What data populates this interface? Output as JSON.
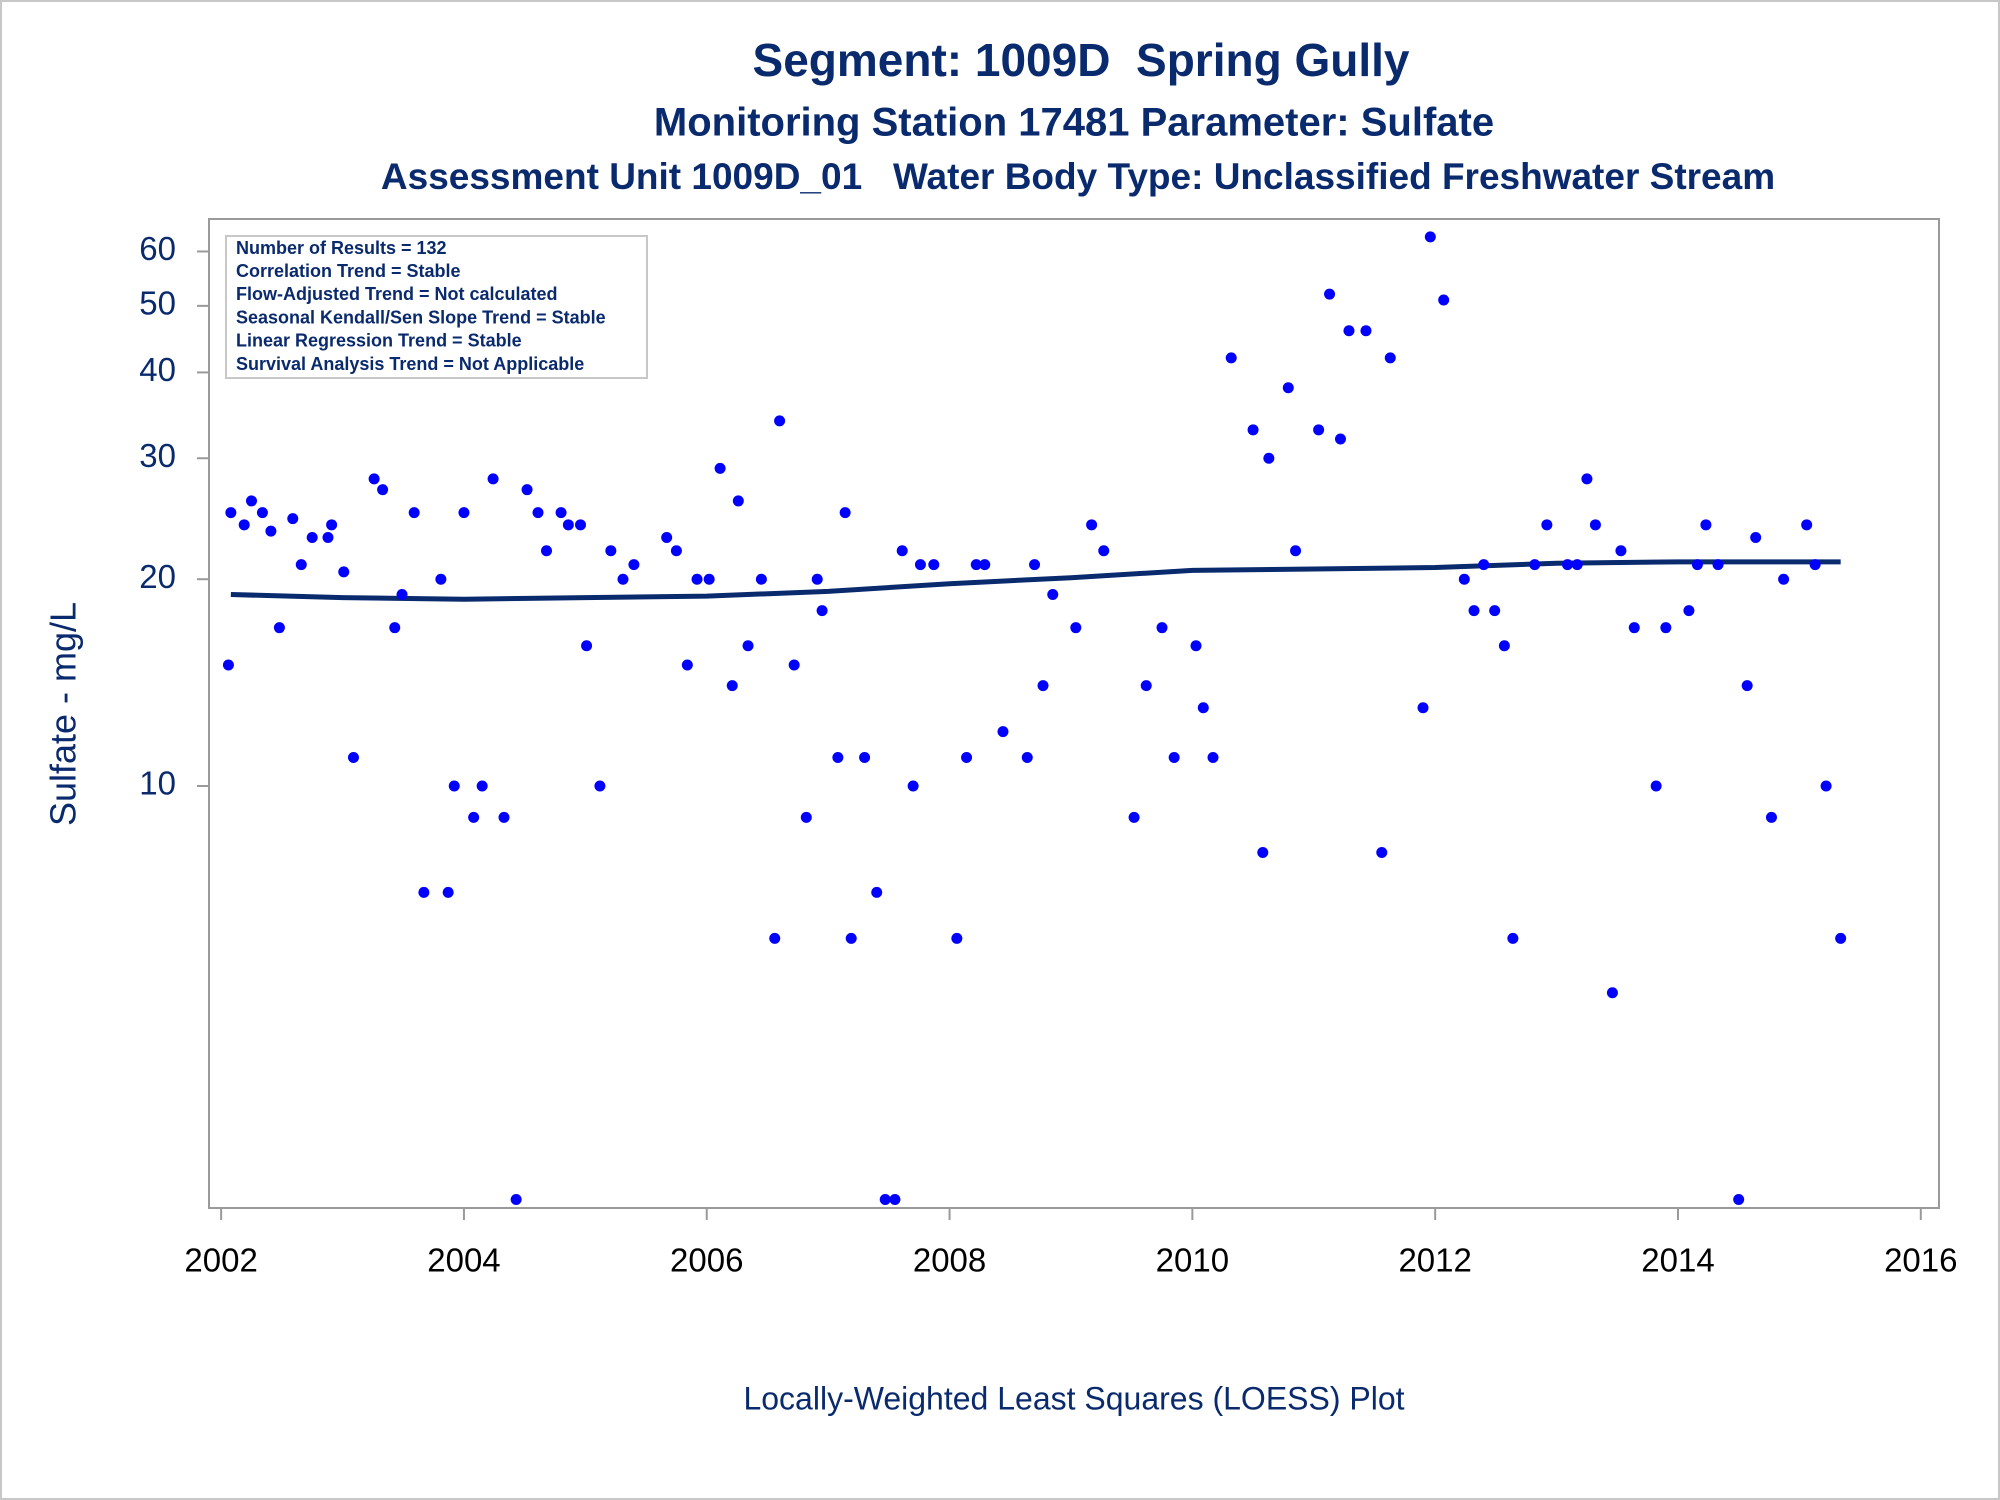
{
  "chart_data": {
    "type": "scatter",
    "title": "Segment: 1009D  Spring Gully",
    "subtitle": "Monitoring Station 17481 Parameter: Sulfate",
    "subtitle2": "Assessment Unit 1009D_01   Water Body Type: Unclassified Freshwater Stream",
    "ylabel": "Sulfate - mg/L",
    "footnote": "Locally-Weighted Least Squares (LOESS) Plot",
    "stats": [
      "Number of Results = 132",
      "Correlation Trend = Stable",
      "Flow-Adjusted Trend = Not calculated",
      "Seasonal Kendall/Sen Slope Trend = Stable",
      "Linear Regression Trend = Stable",
      "Survival Analysis Trend = Not Applicable"
    ],
    "log_y": true,
    "xlim": [
      2001.9,
      2016.15
    ],
    "xticks": [
      2002,
      2004,
      2006,
      2008,
      2010,
      2012,
      2014,
      2016
    ],
    "ylim": [
      2.43,
      66.9
    ],
    "yticks": [
      10,
      20,
      30,
      40,
      50,
      60
    ],
    "color": "#0000ff",
    "x": [
      2002.06,
      2002.08,
      2002.19,
      2002.25,
      2002.34,
      2002.41,
      2002.48,
      2002.59,
      2002.66,
      2002.75,
      2002.88,
      2002.91,
      2003.01,
      2003.09,
      2003.26,
      2003.33,
      2003.43,
      2003.49,
      2003.59,
      2003.67,
      2003.81,
      2003.87,
      2003.92,
      2004.0,
      2004.08,
      2004.15,
      2004.24,
      2004.33,
      2004.43,
      2004.52,
      2004.61,
      2004.68,
      2004.8,
      2004.86,
      2004.96,
      2005.01,
      2005.12,
      2005.21,
      2005.31,
      2005.4,
      2005.67,
      2005.75,
      2005.84,
      2005.92,
      2006.02,
      2006.11,
      2006.21,
      2006.26,
      2006.34,
      2006.45,
      2006.56,
      2006.6,
      2006.72,
      2006.82,
      2006.91,
      2006.95,
      2007.08,
      2007.14,
      2007.19,
      2007.3,
      2007.4,
      2007.47,
      2007.55,
      2007.61,
      2007.7,
      2007.76,
      2007.87,
      2008.06,
      2008.14,
      2008.22,
      2008.29,
      2008.44,
      2008.64,
      2008.7,
      2008.77,
      2008.85,
      2009.04,
      2009.17,
      2009.27,
      2009.52,
      2009.62,
      2009.75,
      2009.85,
      2010.03,
      2010.09,
      2010.17,
      2010.32,
      2010.5,
      2010.58,
      2010.63,
      2010.79,
      2010.85,
      2011.04,
      2011.13,
      2011.22,
      2011.29,
      2011.43,
      2011.56,
      2011.63,
      2011.9,
      2011.96,
      2012.07,
      2012.24,
      2012.32,
      2012.4,
      2012.49,
      2012.57,
      2012.64,
      2012.82,
      2012.92,
      2013.09,
      2013.17,
      2013.25,
      2013.32,
      2013.46,
      2013.53,
      2013.64,
      2013.82,
      2013.9,
      2014.09,
      2014.16,
      2014.23,
      2014.33,
      2014.5,
      2014.57,
      2014.64,
      2014.77,
      2014.87,
      2015.06,
      2015.13,
      2015.22,
      2015.34
    ],
    "values": [
      15,
      25,
      24,
      26,
      25,
      23.5,
      17,
      24.5,
      21,
      23,
      23,
      24,
      20.5,
      11,
      28,
      27,
      17,
      19,
      25,
      7,
      20,
      7,
      10,
      25,
      9,
      10,
      28,
      9,
      2.5,
      27,
      25,
      22,
      25,
      24,
      24,
      16,
      10,
      22,
      20,
      21,
      23,
      22,
      15,
      20,
      20,
      29,
      14,
      26,
      16,
      20,
      6,
      34,
      15,
      9,
      20,
      18,
      11,
      25,
      6,
      11,
      7,
      2.5,
      2.5,
      22,
      10,
      21,
      21,
      6,
      11,
      21,
      21,
      12,
      11,
      21,
      14,
      19,
      17,
      24,
      22,
      9,
      14,
      17,
      11,
      16,
      13,
      11,
      42,
      33,
      8,
      30,
      38,
      22,
      33,
      52,
      32,
      46,
      46,
      8,
      42,
      13,
      63,
      51,
      20,
      18,
      21,
      18,
      16,
      6,
      21,
      24,
      21,
      21,
      28,
      24,
      5,
      22,
      17,
      10,
      17,
      18,
      21,
      24,
      21,
      2.5,
      14,
      23,
      9,
      20,
      24,
      21,
      10,
      6
    ],
    "loess": {
      "color": "#0a2a6e",
      "x": [
        2002.08,
        2003,
        2004,
        2005,
        2006,
        2007,
        2008,
        2009,
        2010,
        2011,
        2012,
        2013,
        2014,
        2015.34
      ],
      "values": [
        19,
        18.8,
        18.7,
        18.8,
        18.9,
        19.2,
        19.7,
        20.1,
        20.6,
        20.7,
        20.8,
        21.1,
        21.2,
        21.2
      ]
    }
  }
}
